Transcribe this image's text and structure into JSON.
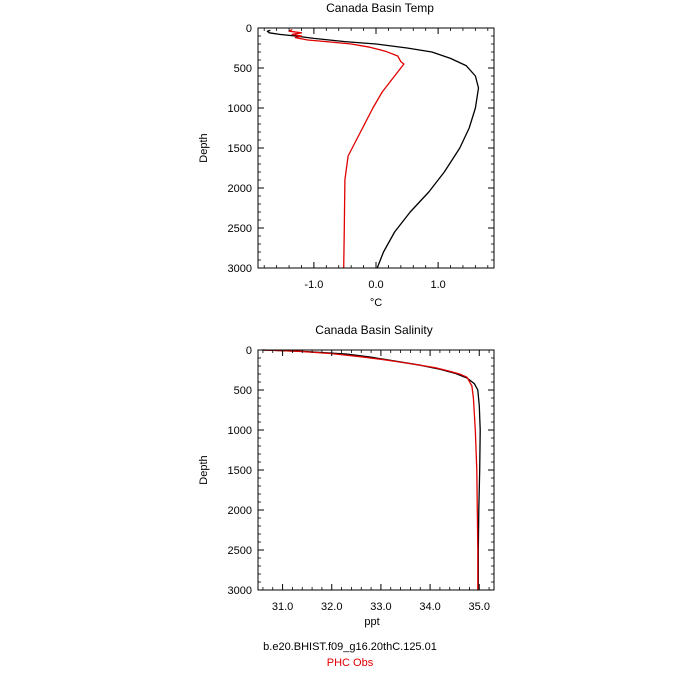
{
  "chart_data": [
    {
      "type": "line",
      "title": "Canada Basin Temp",
      "xlabel": "°C",
      "ylabel": "Depth",
      "xlim": [
        -1.9,
        1.9
      ],
      "ylim": [
        3000,
        0
      ],
      "y_inverted": true,
      "xticks": [
        -1.0,
        0.0,
        1.0
      ],
      "xtick_labels": [
        "-1.0",
        "0.0",
        "1.0"
      ],
      "yticks": [
        0,
        500,
        1000,
        1500,
        2000,
        2500,
        3000
      ],
      "ytick_labels": [
        "0",
        "500",
        "1000",
        "1500",
        "2000",
        "2500",
        "3000"
      ],
      "grid": false,
      "series": [
        {
          "name": "b.e20.BHIST.f09_g16.20thC.125.01",
          "color": "#000000",
          "points": [
            [
              -1.7,
              30
            ],
            [
              -1.75,
              40
            ],
            [
              -1.72,
              60
            ],
            [
              -1.55,
              80
            ],
            [
              -1.3,
              100
            ],
            [
              -1.0,
              130
            ],
            [
              -0.5,
              170
            ],
            [
              0.0,
              200
            ],
            [
              0.5,
              250
            ],
            [
              0.9,
              300
            ],
            [
              1.2,
              380
            ],
            [
              1.45,
              470
            ],
            [
              1.6,
              600
            ],
            [
              1.65,
              750
            ],
            [
              1.6,
              1000
            ],
            [
              1.5,
              1250
            ],
            [
              1.35,
              1500
            ],
            [
              1.1,
              1800
            ],
            [
              0.85,
              2050
            ],
            [
              0.55,
              2300
            ],
            [
              0.3,
              2550
            ],
            [
              0.12,
              2800
            ],
            [
              0.02,
              3000
            ]
          ]
        },
        {
          "name": "PHC Obs",
          "color": "#e00000",
          "points": [
            [
              -1.35,
              20
            ],
            [
              -1.4,
              40
            ],
            [
              -1.2,
              60
            ],
            [
              -1.35,
              80
            ],
            [
              -1.2,
              100
            ],
            [
              -1.3,
              120
            ],
            [
              -1.1,
              150
            ],
            [
              -0.8,
              170
            ],
            [
              -0.4,
              200
            ],
            [
              -0.1,
              240
            ],
            [
              0.15,
              290
            ],
            [
              0.35,
              350
            ],
            [
              0.4,
              420
            ],
            [
              0.45,
              450
            ],
            [
              0.3,
              600
            ],
            [
              0.1,
              800
            ],
            [
              -0.05,
              1000
            ],
            [
              -0.25,
              1300
            ],
            [
              -0.45,
              1600
            ],
            [
              -0.5,
              1900
            ],
            [
              -0.51,
              2500
            ],
            [
              -0.52,
              3000
            ]
          ]
        }
      ]
    },
    {
      "type": "line",
      "title": "Canada Basin Salinity",
      "xlabel": "ppt",
      "ylabel": "Depth",
      "xlim": [
        30.5,
        35.3
      ],
      "ylim": [
        3000,
        0
      ],
      "y_inverted": true,
      "xticks": [
        31.0,
        32.0,
        33.0,
        34.0,
        35.0
      ],
      "xtick_labels": [
        "31.0",
        "32.0",
        "33.0",
        "34.0",
        "35.0"
      ],
      "yticks": [
        0,
        500,
        1000,
        1500,
        2000,
        2500,
        3000
      ],
      "ytick_labels": [
        "0",
        "500",
        "1000",
        "1500",
        "2000",
        "2500",
        "3000"
      ],
      "grid": false,
      "series": [
        {
          "name": "b.e20.BHIST.f09_g16.20thC.125.01",
          "color": "#000000",
          "points": [
            [
              30.6,
              0
            ],
            [
              31.5,
              20
            ],
            [
              32.3,
              50
            ],
            [
              32.8,
              90
            ],
            [
              33.3,
              140
            ],
            [
              33.8,
              190
            ],
            [
              34.2,
              240
            ],
            [
              34.5,
              290
            ],
            [
              34.75,
              350
            ],
            [
              34.9,
              420
            ],
            [
              34.97,
              500
            ],
            [
              35.0,
              700
            ],
            [
              35.02,
              1000
            ],
            [
              35.01,
              1500
            ],
            [
              34.99,
              2000
            ],
            [
              34.98,
              2500
            ],
            [
              34.98,
              3000
            ]
          ]
        },
        {
          "name": "PHC Obs",
          "color": "#e00000",
          "points": [
            [
              30.6,
              0
            ],
            [
              31.3,
              15
            ],
            [
              32.0,
              45
            ],
            [
              32.6,
              85
            ],
            [
              33.1,
              125
            ],
            [
              33.6,
              170
            ],
            [
              34.1,
              220
            ],
            [
              34.4,
              265
            ],
            [
              34.6,
              300
            ],
            [
              34.75,
              340
            ],
            [
              34.85,
              450
            ],
            [
              34.88,
              600
            ],
            [
              34.92,
              1000
            ],
            [
              34.95,
              1500
            ],
            [
              34.96,
              2000
            ],
            [
              34.97,
              2500
            ],
            [
              34.97,
              3000
            ]
          ]
        }
      ]
    }
  ],
  "legend": [
    {
      "label": "b.e20.BHIST.f09_g16.20thC.125.01",
      "color": "#000000"
    },
    {
      "label": "PHC Obs",
      "color": "#e00000"
    }
  ]
}
